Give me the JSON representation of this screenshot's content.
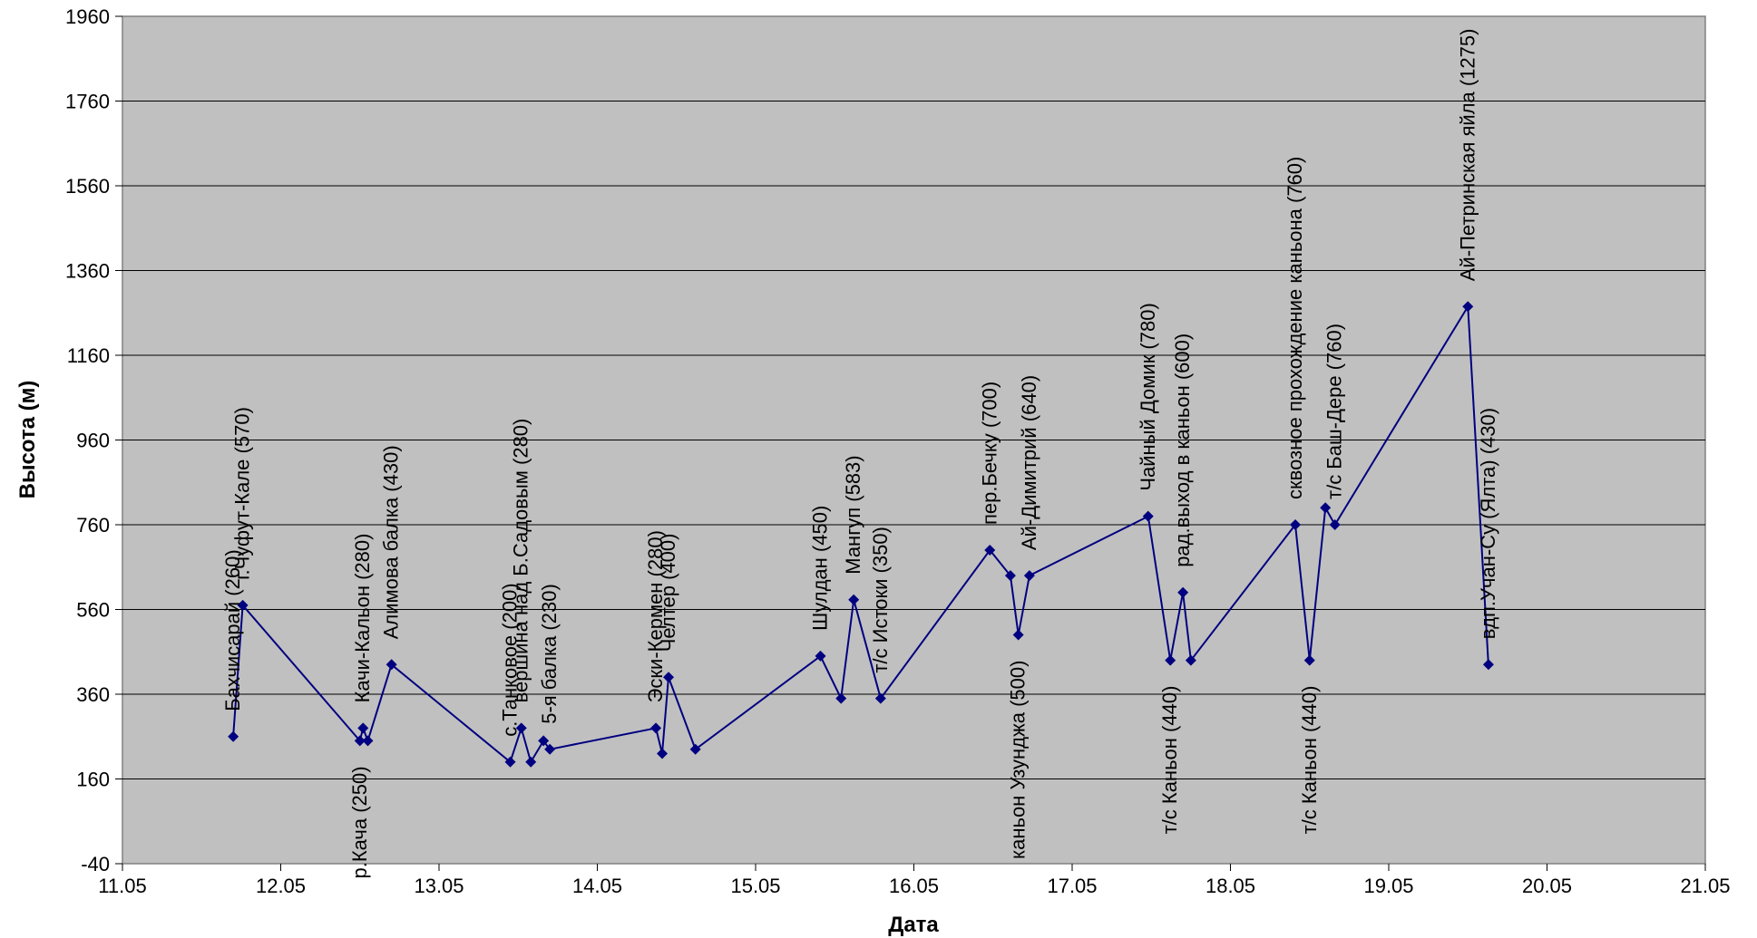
{
  "chart_data": {
    "type": "line",
    "xlabel": "Дата",
    "ylabel": "Высота (м)",
    "xlim": [
      11.0,
      21.0
    ],
    "ylim": [
      -40,
      1960
    ],
    "x_ticks": [
      "11.05",
      "12.05",
      "13.05",
      "14.05",
      "15.05",
      "16.05",
      "17.05",
      "18.05",
      "19.05",
      "20.05",
      "21.05"
    ],
    "y_ticks": [
      -40,
      160,
      360,
      560,
      760,
      960,
      1160,
      1360,
      1560,
      1760,
      1960
    ],
    "grid": "horizontal",
    "series_color": "#000080",
    "plot_bg": "#c0c0c0",
    "points": [
      {
        "x": 11.7,
        "y": 260,
        "label": "Бахчисарай (260)",
        "pos": "above"
      },
      {
        "x": 11.76,
        "y": 570,
        "label": "г.Чуфут-Кале (570)",
        "pos": "above"
      },
      {
        "x": 12.5,
        "y": 250,
        "label": "р.Кача (250)",
        "pos": "below"
      },
      {
        "x": 12.52,
        "y": 280,
        "label": "Качи-Кальон (280)",
        "pos": "above"
      },
      {
        "x": 12.55,
        "y": 250,
        "label": "",
        "pos": "none"
      },
      {
        "x": 12.7,
        "y": 430,
        "label": "Алимова балка (430)",
        "pos": "above"
      },
      {
        "x": 13.45,
        "y": 200,
        "label": "с.Танковое (200)",
        "pos": "above"
      },
      {
        "x": 13.52,
        "y": 280,
        "label": "вершина над Б.Садовым (280)",
        "pos": "above"
      },
      {
        "x": 13.58,
        "y": 200,
        "label": "",
        "pos": "none"
      },
      {
        "x": 13.66,
        "y": 250,
        "label": "",
        "pos": "none"
      },
      {
        "x": 13.7,
        "y": 230,
        "label": "5-я балка (230)",
        "pos": "above"
      },
      {
        "x": 14.37,
        "y": 280,
        "label": "Эски-Кермен (280)",
        "pos": "above"
      },
      {
        "x": 14.41,
        "y": 220,
        "label": "",
        "pos": "none"
      },
      {
        "x": 14.45,
        "y": 400,
        "label": "Челтер (400)",
        "pos": "above"
      },
      {
        "x": 14.62,
        "y": 230,
        "label": "",
        "pos": "none"
      },
      {
        "x": 15.41,
        "y": 450,
        "label": "Шулдан (450)",
        "pos": "above"
      },
      {
        "x": 15.54,
        "y": 350,
        "label": "",
        "pos": "none"
      },
      {
        "x": 15.62,
        "y": 583,
        "label": "Мангуп (583)",
        "pos": "above"
      },
      {
        "x": 15.79,
        "y": 350,
        "label": "т/с Истоки (350)",
        "pos": "above"
      },
      {
        "x": 16.48,
        "y": 700,
        "label": "пер.Бечку (700)",
        "pos": "above"
      },
      {
        "x": 16.61,
        "y": 640,
        "label": "",
        "pos": "none"
      },
      {
        "x": 16.66,
        "y": 500,
        "label": "каньон Узунджа (500)",
        "pos": "below"
      },
      {
        "x": 16.73,
        "y": 640,
        "label": "Ай-Димитрий (640)",
        "pos": "above"
      },
      {
        "x": 17.48,
        "y": 780,
        "label": "Чайный Домик (780)",
        "pos": "above"
      },
      {
        "x": 17.62,
        "y": 440,
        "label": "т/с Каньон (440)",
        "pos": "below"
      },
      {
        "x": 17.7,
        "y": 600,
        "label": "рад.выход в каньон (600)",
        "pos": "above"
      },
      {
        "x": 17.75,
        "y": 440,
        "label": "",
        "pos": "none"
      },
      {
        "x": 18.41,
        "y": 760,
        "label": "сквозное прохождение каньона (760)",
        "pos": "above"
      },
      {
        "x": 18.5,
        "y": 440,
        "label": "т/с Каньон (440)",
        "pos": "below"
      },
      {
        "x": 18.6,
        "y": 800,
        "label": "",
        "pos": "none"
      },
      {
        "x": 18.66,
        "y": 760,
        "label": "т/с Баш-Дере (760)",
        "pos": "above"
      },
      {
        "x": 19.5,
        "y": 1275,
        "label": "Ай-Петринская яйла (1275)",
        "pos": "above"
      },
      {
        "x": 19.63,
        "y": 430,
        "label": "вдп.Учан-Су (Ялта) (430)",
        "pos": "above"
      }
    ]
  }
}
